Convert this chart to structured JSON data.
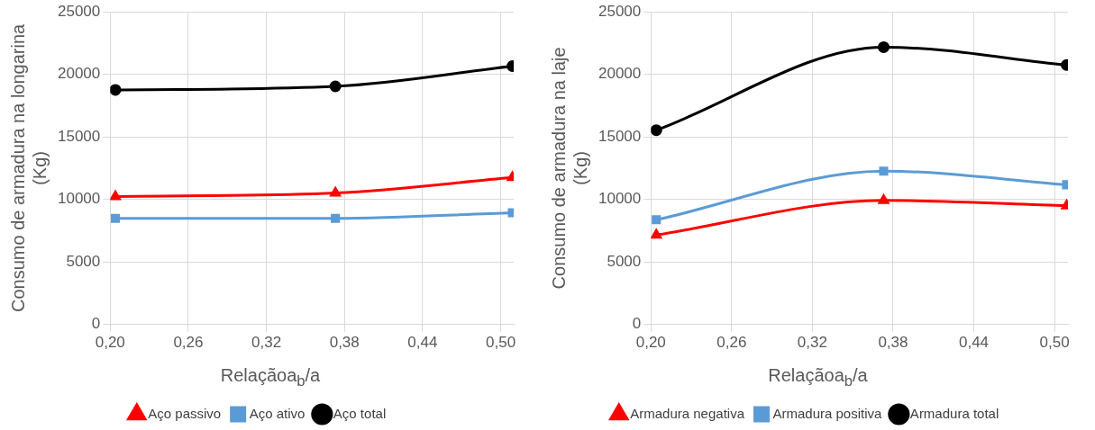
{
  "chart_data": [
    {
      "type": "line",
      "xlabel": "Relaçãoa$_{b}$/a",
      "ylabel": "Consumo de armadura na longarina (Kg)",
      "x": [
        0.204,
        0.373,
        0.509
      ],
      "series": [
        {
          "name": "Aço passivo",
          "color": "#ff0000",
          "marker": "triangle",
          "values": [
            10230,
            10510,
            11750
          ]
        },
        {
          "name": "Aço ativo",
          "color": "#5b9bd5",
          "marker": "square",
          "values": [
            8480,
            8480,
            8930
          ]
        },
        {
          "name": "Aço total",
          "color": "#000000",
          "marker": "circle",
          "values": [
            18760,
            19040,
            20660
          ]
        }
      ],
      "xlim": [
        0.2,
        0.51
      ],
      "xticks": [
        {
          "value": 0.2,
          "label": "0,20"
        },
        {
          "value": 0.26,
          "label": "0,26"
        },
        {
          "value": 0.32,
          "label": "0,32"
        },
        {
          "value": 0.38,
          "label": "0,38"
        },
        {
          "value": 0.44,
          "label": "0,44"
        },
        {
          "value": 0.5,
          "label": "0,50"
        }
      ],
      "ylim": [
        0,
        25000
      ],
      "yticks": [
        0,
        5000,
        10000,
        15000,
        20000,
        25000
      ],
      "grid": true,
      "legend": "bottom",
      "line_style": "solid"
    },
    {
      "type": "line",
      "xlabel": "Relaçãoa$_{b}$/a",
      "ylabel": "Consumo de armadura na laje (Kg)",
      "x": [
        0.204,
        0.373,
        0.509
      ],
      "series": [
        {
          "name": "Armadura negativa",
          "color": "#ff0000",
          "marker": "triangle",
          "values": [
            7150,
            9920,
            9490
          ]
        },
        {
          "name": "Armadura positiva",
          "color": "#5b9bd5",
          "marker": "square",
          "values": [
            8370,
            12260,
            11170
          ]
        },
        {
          "name": "Armadura total",
          "color": "#000000",
          "marker": "circle",
          "values": [
            15540,
            22180,
            20750
          ]
        }
      ],
      "xlim": [
        0.2,
        0.51
      ],
      "xticks": [
        {
          "value": 0.2,
          "label": "0,20"
        },
        {
          "value": 0.26,
          "label": "0,26"
        },
        {
          "value": 0.32,
          "label": "0,32"
        },
        {
          "value": 0.38,
          "label": "0,38"
        },
        {
          "value": 0.44,
          "label": "0,44"
        },
        {
          "value": 0.5,
          "label": "0,50"
        }
      ],
      "ylim": [
        0,
        25000
      ],
      "yticks": [
        0,
        5000,
        10000,
        15000,
        20000,
        25000
      ],
      "grid": true,
      "legend": "bottom",
      "line_style": "solid"
    }
  ]
}
